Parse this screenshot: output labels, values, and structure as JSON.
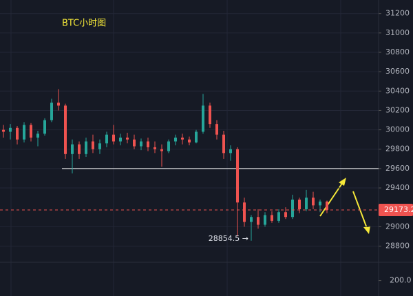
{
  "chart_data": {
    "type": "candlestick",
    "title": "BTC小时图",
    "up_color": "#26a69a",
    "down_color": "#ef5350",
    "ylim": [
      28640,
      31340
    ],
    "yticks": [
      31200,
      31000,
      30800,
      30600,
      30400,
      30200,
      30000,
      29800,
      29600,
      29400,
      29000,
      28800
    ],
    "grid": true,
    "volume_ylim": [
      0,
      420
    ],
    "volume_ticks": [
      {
        "value": 200,
        "label": "200.0"
      }
    ],
    "candles": [
      [
        30000,
        30050,
        29920,
        29980
      ],
      [
        29980,
        30060,
        29900,
        30020
      ],
      [
        30020,
        30040,
        29850,
        29900
      ],
      [
        29900,
        30080,
        29870,
        30050
      ],
      [
        30050,
        30070,
        29880,
        29920
      ],
      [
        29920,
        29990,
        29830,
        29960
      ],
      [
        29960,
        30120,
        29940,
        30100
      ],
      [
        30100,
        30320,
        30080,
        30280
      ],
      [
        30280,
        30420,
        30200,
        30250
      ],
      [
        30250,
        30270,
        29700,
        29750
      ],
      [
        29750,
        29900,
        29550,
        29850
      ],
      [
        29850,
        29880,
        29700,
        29750
      ],
      [
        29750,
        29920,
        29720,
        29880
      ],
      [
        29880,
        29950,
        29760,
        29800
      ],
      [
        29800,
        29900,
        29750,
        29860
      ],
      [
        29860,
        29980,
        29820,
        29950
      ],
      [
        29950,
        30050,
        29850,
        29880
      ],
      [
        29880,
        29960,
        29840,
        29920
      ],
      [
        29920,
        29970,
        29860,
        29900
      ],
      [
        29900,
        29950,
        29800,
        29830
      ],
      [
        29830,
        29910,
        29790,
        29880
      ],
      [
        29880,
        29920,
        29780,
        29820
      ],
      [
        29820,
        29880,
        29760,
        29800
      ],
      [
        29800,
        29850,
        29620,
        29780
      ],
      [
        29780,
        29900,
        29760,
        29880
      ],
      [
        29880,
        29950,
        29840,
        29920
      ],
      [
        29920,
        29960,
        29850,
        29900
      ],
      [
        29900,
        29930,
        29840,
        29870
      ],
      [
        29870,
        30000,
        29860,
        29980
      ],
      [
        29980,
        30370,
        29960,
        30250
      ],
      [
        30250,
        30280,
        30020,
        30060
      ],
      [
        30060,
        30100,
        29900,
        29950
      ],
      [
        29950,
        29990,
        29700,
        29760
      ],
      [
        29760,
        29840,
        29680,
        29800
      ],
      [
        29800,
        29820,
        28900,
        29250
      ],
      [
        29250,
        29300,
        29000,
        29050
      ],
      [
        29050,
        29120,
        28854.5,
        29100
      ],
      [
        29100,
        29180,
        28980,
        29020
      ],
      [
        29020,
        29150,
        29000,
        29120
      ],
      [
        29120,
        29160,
        29040,
        29060
      ],
      [
        29060,
        29180,
        29040,
        29150
      ],
      [
        29150,
        29200,
        29080,
        29100
      ],
      [
        29100,
        29330,
        29080,
        29280
      ],
      [
        29280,
        29300,
        29140,
        29180
      ],
      [
        29180,
        29380,
        29160,
        29300
      ],
      [
        29300,
        29360,
        29180,
        29220
      ],
      [
        29220,
        29280,
        29150,
        29260
      ],
      [
        29260,
        29270,
        29140,
        29173.2
      ]
    ],
    "support_line": {
      "value": 29600,
      "color": "#ffffff"
    },
    "last_price": 29173.2,
    "last_price_color": "#ef5350",
    "low_label": "28854.5 →",
    "low_candle": 36,
    "annotation_color": "#f5e839"
  }
}
